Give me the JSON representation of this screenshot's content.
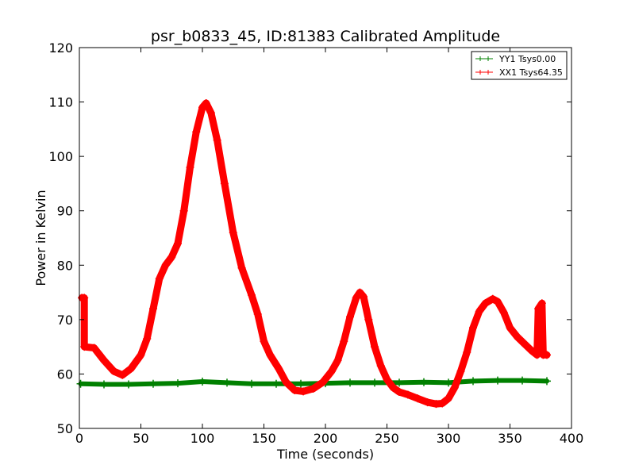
{
  "chart_data": {
    "type": "line",
    "title": "psr_b0833_45, ID:81383 Calibrated Amplitude",
    "xlabel": "Time (seconds)",
    "ylabel": "Power in Kelvin",
    "xlim": [
      0,
      400
    ],
    "ylim": [
      50,
      120
    ],
    "xticks": [
      0,
      50,
      100,
      150,
      200,
      250,
      300,
      350,
      400
    ],
    "yticks": [
      50,
      60,
      70,
      80,
      90,
      100,
      110,
      120
    ],
    "grid": false,
    "legend": "top-right",
    "series": [
      {
        "name": "YY1 Tsys0.00",
        "color": "#008000",
        "marker": "plus",
        "points": [
          [
            1,
            58.2
          ],
          [
            20,
            58.1
          ],
          [
            40,
            58.1
          ],
          [
            60,
            58.2
          ],
          [
            80,
            58.3
          ],
          [
            100,
            58.6
          ],
          [
            120,
            58.4
          ],
          [
            140,
            58.2
          ],
          [
            160,
            58.2
          ],
          [
            180,
            58.2
          ],
          [
            200,
            58.3
          ],
          [
            220,
            58.4
          ],
          [
            240,
            58.4
          ],
          [
            260,
            58.4
          ],
          [
            280,
            58.5
          ],
          [
            300,
            58.4
          ],
          [
            320,
            58.7
          ],
          [
            340,
            58.8
          ],
          [
            360,
            58.8
          ],
          [
            380,
            58.7
          ]
        ]
      },
      {
        "name": "XX1 Tsys64.35",
        "color": "#ff0000",
        "marker": "plus",
        "points": [
          [
            2,
            74
          ],
          [
            4,
            74
          ],
          [
            4,
            65
          ],
          [
            12,
            64.8
          ],
          [
            20,
            62.5
          ],
          [
            28,
            60.5
          ],
          [
            35,
            59.8
          ],
          [
            42,
            61
          ],
          [
            50,
            63.5
          ],
          [
            55,
            66.5
          ],
          [
            60,
            72
          ],
          [
            65,
            77.5
          ],
          [
            70,
            80
          ],
          [
            75,
            81.5
          ],
          [
            80,
            84
          ],
          [
            85,
            90
          ],
          [
            90,
            98
          ],
          [
            95,
            104.5
          ],
          [
            100,
            109
          ],
          [
            103,
            109.8
          ],
          [
            107,
            108
          ],
          [
            112,
            103
          ],
          [
            118,
            95
          ],
          [
            125,
            86
          ],
          [
            132,
            79.5
          ],
          [
            140,
            74.5
          ],
          [
            145,
            71
          ],
          [
            150,
            66
          ],
          [
            155,
            63.5
          ],
          [
            162,
            61
          ],
          [
            168,
            58.5
          ],
          [
            175,
            57
          ],
          [
            182,
            56.8
          ],
          [
            190,
            57.3
          ],
          [
            198,
            58.5
          ],
          [
            205,
            60.5
          ],
          [
            210,
            62.5
          ],
          [
            215,
            66
          ],
          [
            220,
            70.5
          ],
          [
            225,
            74
          ],
          [
            228,
            75
          ],
          [
            231,
            74.2
          ],
          [
            235,
            70
          ],
          [
            240,
            65
          ],
          [
            245,
            61.5
          ],
          [
            250,
            59
          ],
          [
            255,
            57.5
          ],
          [
            260,
            56.7
          ],
          [
            267,
            56.2
          ],
          [
            275,
            55.5
          ],
          [
            283,
            54.8
          ],
          [
            290,
            54.5
          ],
          [
            295,
            54.6
          ],
          [
            300,
            55.5
          ],
          [
            305,
            57.5
          ],
          [
            310,
            60.5
          ],
          [
            315,
            64
          ],
          [
            320,
            68.5
          ],
          [
            325,
            71.5
          ],
          [
            330,
            73
          ],
          [
            336,
            73.8
          ],
          [
            340,
            73.3
          ],
          [
            345,
            71.3
          ],
          [
            350,
            68.5
          ],
          [
            356,
            66.8
          ],
          [
            362,
            65.5
          ],
          [
            368,
            64.2
          ],
          [
            372,
            63.5
          ],
          [
            373,
            72
          ],
          [
            376,
            73
          ],
          [
            377,
            63.5
          ],
          [
            380,
            63.5
          ]
        ]
      }
    ]
  }
}
